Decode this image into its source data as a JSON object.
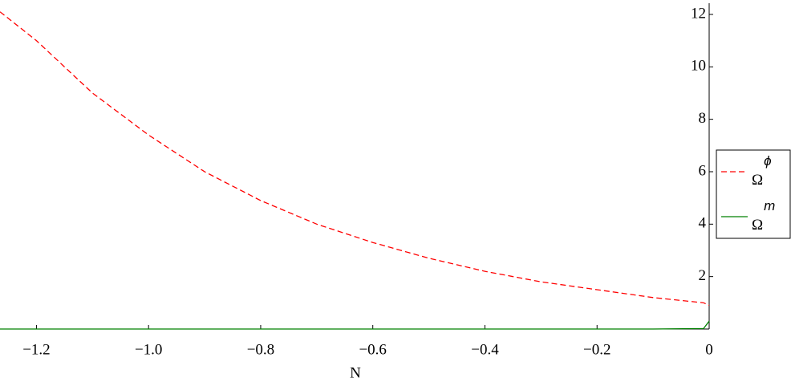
{
  "chart_data": {
    "type": "line",
    "x_label": "N",
    "x": [
      -1.265,
      -1.2,
      -1.1,
      -1.0,
      -0.9,
      -0.8,
      -0.7,
      -0.6,
      -0.5,
      -0.4,
      -0.3,
      -0.2,
      -0.1,
      -0.01,
      0
    ],
    "series": [
      {
        "name": "Ω",
        "superscript": "ϕ",
        "color": "#ff0000",
        "dash": true,
        "values": [
          12.1,
          11.0,
          9.0,
          7.4,
          6.0,
          4.9,
          4.0,
          3.3,
          2.7,
          2.2,
          1.8,
          1.5,
          1.2,
          1.0,
          0.9
        ]
      },
      {
        "name": "Ω",
        "superscript": "m",
        "color": "#008000",
        "dash": false,
        "values": [
          0,
          0,
          0,
          0,
          0,
          0,
          0,
          0,
          0,
          0,
          0,
          0,
          0,
          0.02,
          0.3
        ]
      }
    ],
    "xlim": [
      -1.265,
      0
    ],
    "ylim": [
      0,
      12.55
    ],
    "xticks": [
      {
        "value": -1.2,
        "label": "−1.2"
      },
      {
        "value": -1.0,
        "label": "−1.0"
      },
      {
        "value": -0.8,
        "label": "−0.8"
      },
      {
        "value": -0.6,
        "label": "−0.6"
      },
      {
        "value": -0.4,
        "label": "−0.4"
      },
      {
        "value": -0.2,
        "label": "−0.2"
      },
      0
    ],
    "yticks": [
      2,
      4,
      6,
      8,
      10,
      12
    ],
    "legend": "right"
  }
}
